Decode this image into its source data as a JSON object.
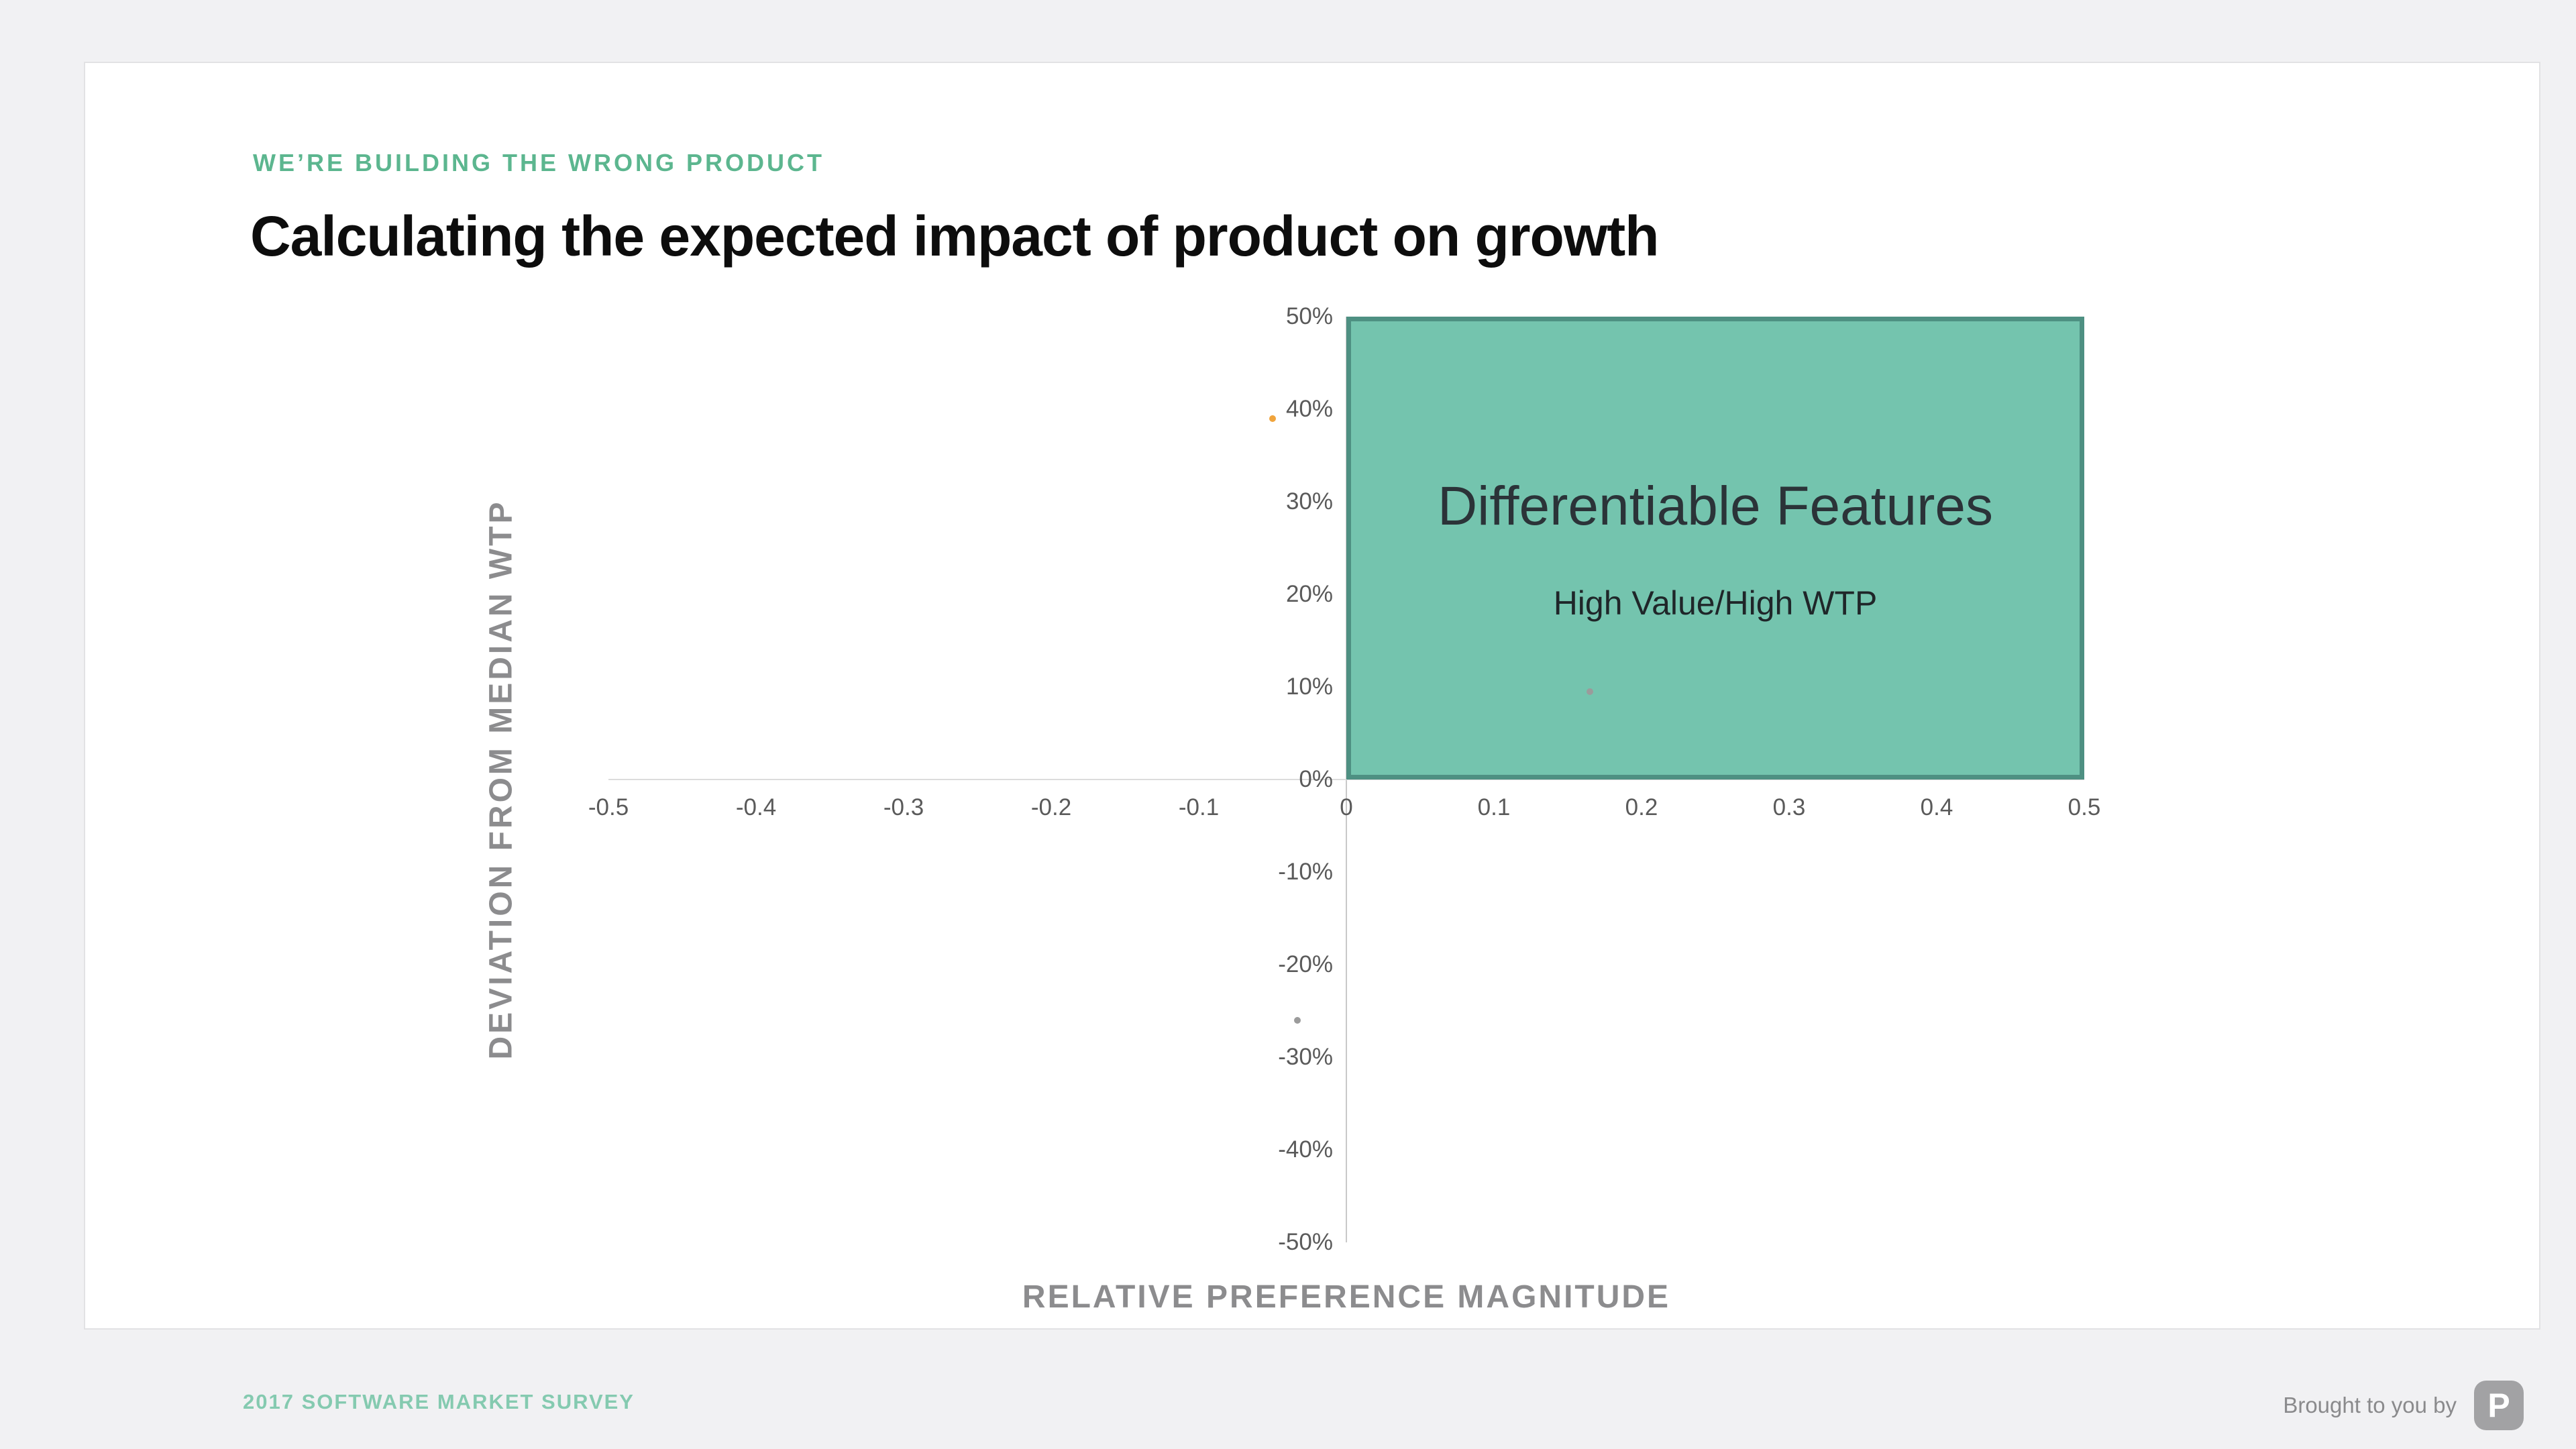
{
  "slide": {
    "eyebrow": "WE’RE BUILDING THE WRONG PRODUCT",
    "title": "Calculating the expected impact of product on growth",
    "accent_color": "#5cb68f"
  },
  "chart_data": {
    "type": "scatter",
    "title": "",
    "xlabel": "RELATIVE PREFERENCE MAGNITUDE",
    "ylabel": "DEVIATION FROM MEDIAN WTP",
    "xlim": [
      -0.5,
      0.5
    ],
    "ylim": [
      -50,
      50
    ],
    "grid": false,
    "x_ticks": [
      "-0.5",
      "-0.4",
      "-0.3",
      "-0.2",
      "-0.1",
      "0",
      "0.1",
      "0.2",
      "0.3",
      "0.4",
      "0.5"
    ],
    "y_ticks": [
      "50%",
      "40%",
      "30%",
      "20%",
      "10%",
      "0%",
      "-10%",
      "-20%",
      "-30%",
      "-40%",
      "-50%"
    ],
    "points": [
      {
        "x": -0.05,
        "y": 39,
        "color": "#f0a43c"
      },
      {
        "x": 0.165,
        "y": 9.5,
        "color": "#9b9b9b"
      },
      {
        "x": -0.033,
        "y": -26,
        "color": "#9b9b9b"
      }
    ],
    "region": {
      "label": "Differentiable Features",
      "sublabel": "High Value/High WTP",
      "x_range": [
        0,
        0.5
      ],
      "y_range": [
        0,
        50
      ],
      "fill": "#74c4ae",
      "border": "#4e9082"
    }
  },
  "footer": {
    "survey": "2017 SOFTWARE MARKET SURVEY",
    "brought_by": "Brought to you by",
    "logo_letter": "P"
  }
}
